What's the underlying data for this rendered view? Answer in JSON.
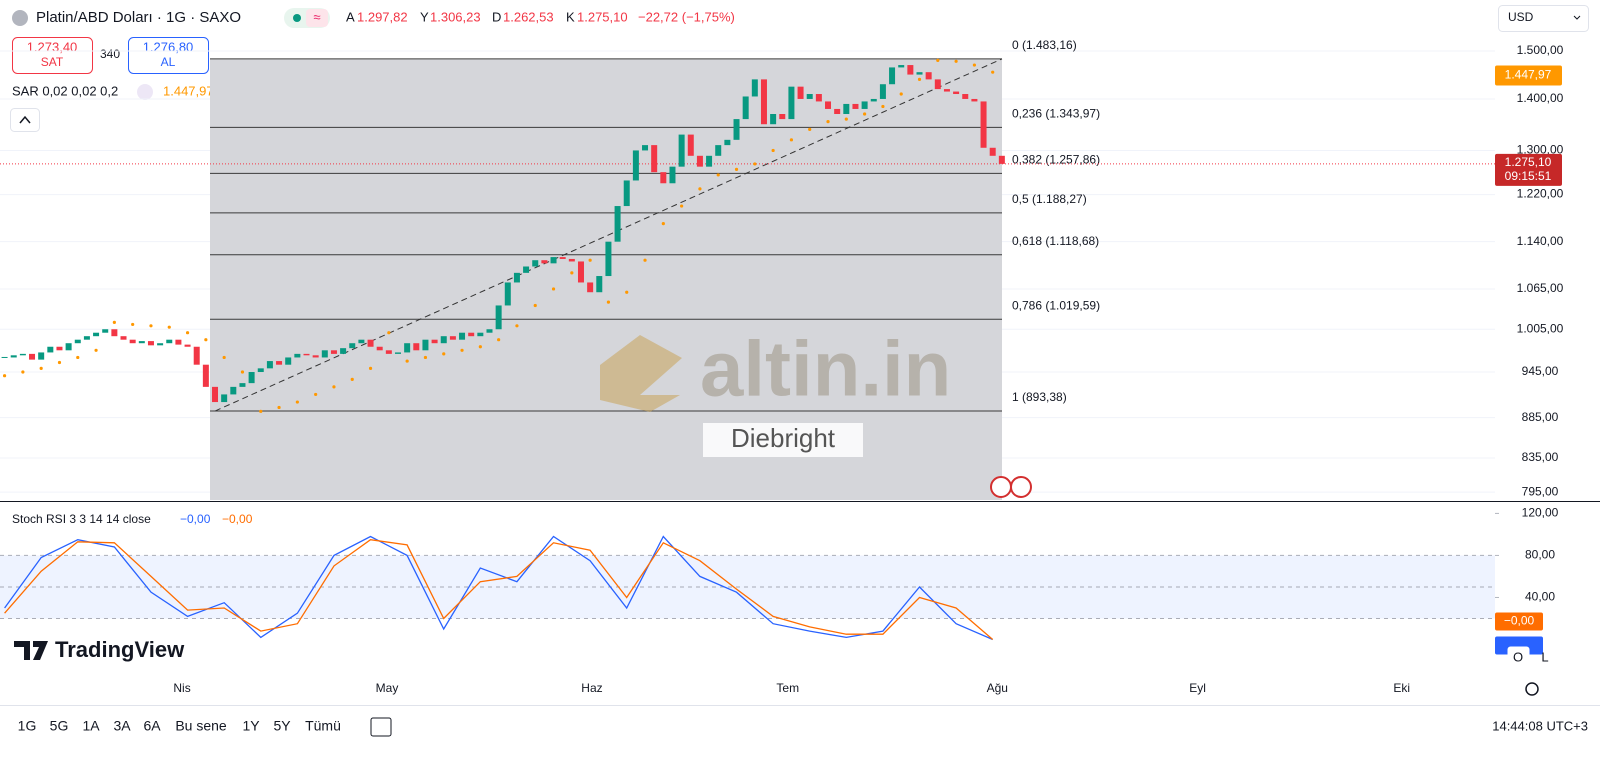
{
  "header": {
    "title": "Platin/ABD Doları · 1G · SAXO",
    "ohlc": [
      {
        "key": "A",
        "value": "1.297,82"
      },
      {
        "key": "Y",
        "value": "1.306,23"
      },
      {
        "key": "D",
        "value": "1.262,53"
      },
      {
        "key": "K",
        "value": "1.275,10"
      }
    ],
    "change": "−22,72 (−1,75%)",
    "sell": {
      "price": "1.273,40",
      "label": "SAT"
    },
    "spread": "340",
    "buy": {
      "price": "1.276,80",
      "label": "AL"
    },
    "currency": "USD"
  },
  "chart_data": [
    {
      "type": "candlestick",
      "log": true,
      "up_color": "#089981",
      "down_color": "#f23645",
      "values": [
        965,
        968,
        970,
        962,
        972,
        980,
        975,
        985,
        990,
        995,
        1000,
        1005,
        995,
        990,
        985,
        988,
        982,
        985,
        990,
        983,
        980,
        955,
        925,
        905,
        915,
        925,
        930,
        945,
        950,
        960,
        955,
        965,
        970,
        968,
        965,
        975,
        970,
        978,
        985,
        990,
        980,
        975,
        970,
        972,
        985,
        975,
        990,
        985,
        995,
        990,
        1000,
        995,
        1000,
        1005,
        1040,
        1075,
        1090,
        1100,
        1110,
        1105,
        1115,
        1112,
        1108,
        1075,
        1060,
        1085,
        1140,
        1200,
        1245,
        1300,
        1310,
        1260,
        1240,
        1270,
        1330,
        1290,
        1270,
        1290,
        1310,
        1320,
        1360,
        1405,
        1440,
        1350,
        1370,
        1360,
        1425,
        1400,
        1410,
        1395,
        1380,
        1370,
        1390,
        1380,
        1395,
        1400,
        1430,
        1465,
        1470,
        1450,
        1455,
        1440,
        1420,
        1415,
        1410,
        1400,
        1395,
        1305,
        1290,
        1275.1
      ],
      "last_label": "1.275,10",
      "countdown": "09:15:51",
      "xlim": [
        -0.5,
        162.9
      ],
      "xticks": [
        {
          "value": 19.4,
          "label": "Nis"
        },
        {
          "value": 41.8,
          "label": "May"
        },
        {
          "value": 64.2,
          "label": "Haz"
        },
        {
          "value": 85.6,
          "label": "Tem"
        },
        {
          "value": 108.5,
          "label": "Ağu"
        },
        {
          "value": 130.4,
          "label": "Eyl"
        },
        {
          "value": 152.7,
          "label": "Eki"
        }
      ],
      "ylim": [
        786,
        1535
      ],
      "yticks": [
        {
          "value": 1500,
          "label": "1.500,00"
        },
        {
          "value": 1400,
          "label": "1.400,00"
        },
        {
          "value": 1300,
          "label": "1.300,00"
        },
        {
          "value": 1220,
          "label": "1.220,00"
        },
        {
          "value": 1140,
          "label": "1.140,00"
        },
        {
          "value": 1065,
          "label": "1.065,00"
        },
        {
          "value": 1005,
          "label": "1.005,00"
        },
        {
          "value": 945,
          "label": "945,00"
        },
        {
          "value": 885,
          "label": "885,00"
        },
        {
          "value": 835,
          "label": "835,00"
        },
        {
          "value": 795,
          "label": "795,00"
        }
      ],
      "grid": true,
      "fib": [
        {
          "label": "0 (1.483,16)",
          "value": 1483.16
        },
        {
          "label": "0,236 (1.343,97)",
          "value": 1343.97
        },
        {
          "label": "0,382 (1.257,86)",
          "value": 1257.86
        },
        {
          "label": "0,5 (1.188,27)",
          "value": 1188.27
        },
        {
          "label": "0,618 (1.118,68)",
          "value": 1118.68
        },
        {
          "label": "0,786 (1.019,59)",
          "value": 1019.59
        },
        {
          "label": "1 (893,38)",
          "value": 893.38
        }
      ],
      "sar": {
        "label": "SAR 0,02 0,02 0,2",
        "last_label": "1.447,97",
        "last_value": 1447.97,
        "color": "#ff9800",
        "x": [
          0,
          2,
          4,
          6,
          8,
          10,
          12,
          14,
          16,
          18,
          20,
          22,
          24,
          26,
          28,
          30,
          32,
          34,
          36,
          38,
          40,
          42,
          44,
          46,
          48,
          50,
          52,
          54,
          56,
          58,
          60,
          62,
          64,
          66,
          68,
          70,
          72,
          74,
          76,
          78,
          80,
          82,
          84,
          86,
          88,
          90,
          92,
          94,
          96,
          98,
          100,
          102,
          104,
          106,
          108
        ],
        "values": [
          940,
          945,
          950,
          958,
          965,
          975,
          1015,
          1012,
          1010,
          1008,
          1000,
          990,
          965,
          945,
          893,
          898,
          905,
          915,
          925,
          935,
          950,
          1000,
          960,
          965,
          970,
          975,
          980,
          990,
          1010,
          1040,
          1065,
          1090,
          1110,
          1045,
          1060,
          1110,
          1170,
          1200,
          1230,
          1255,
          1265,
          1275,
          1300,
          1320,
          1340,
          1355,
          1360,
          1370,
          1385,
          1410,
          1440,
          1480,
          1478,
          1470,
          1455
        ]
      }
    },
    {
      "type": "line",
      "title": "Stoch RSI 3 3 14 14 close",
      "x": [
        0,
        4,
        8,
        12,
        16,
        20,
        24,
        28,
        32,
        36,
        40,
        44,
        48,
        52,
        56,
        60,
        64,
        68,
        72,
        76,
        80,
        84,
        88,
        92,
        96,
        100,
        104,
        108
      ],
      "series": [
        {
          "color": "#2962ff",
          "value_label": "−0,00",
          "values": [
            30,
            78,
            95,
            88,
            45,
            22,
            35,
            2,
            25,
            80,
            98,
            80,
            10,
            68,
            55,
            98,
            75,
            30,
            98,
            60,
            45,
            15,
            8,
            2,
            8,
            50,
            15,
            0
          ]
        },
        {
          "color": "#ff6d00",
          "value_label": "−0,00",
          "values": [
            25,
            65,
            93,
            92,
            60,
            28,
            30,
            8,
            15,
            70,
            95,
            90,
            20,
            55,
            60,
            92,
            85,
            40,
            92,
            75,
            48,
            22,
            12,
            5,
            5,
            40,
            30,
            0
          ]
        }
      ],
      "ylim": [
        -10,
        128
      ],
      "yticks": [
        {
          "value": 120,
          "label": "120,00"
        },
        {
          "value": 80,
          "label": "80,00"
        },
        {
          "value": 40,
          "label": "40,00"
        }
      ],
      "levels": [
        80,
        50,
        20
      ]
    }
  ],
  "watermark": {
    "brand": "altin.in",
    "author": "Diebright",
    "logo": "TradingView"
  },
  "toolbar": {
    "ranges": [
      "1G",
      "5G",
      "1A",
      "3A",
      "6A",
      "Bu sene",
      "1Y",
      "5Y",
      "Tümü"
    ],
    "clock": "14:44:08 UTC+3",
    "scale_buttons": [
      "O",
      "L"
    ]
  }
}
